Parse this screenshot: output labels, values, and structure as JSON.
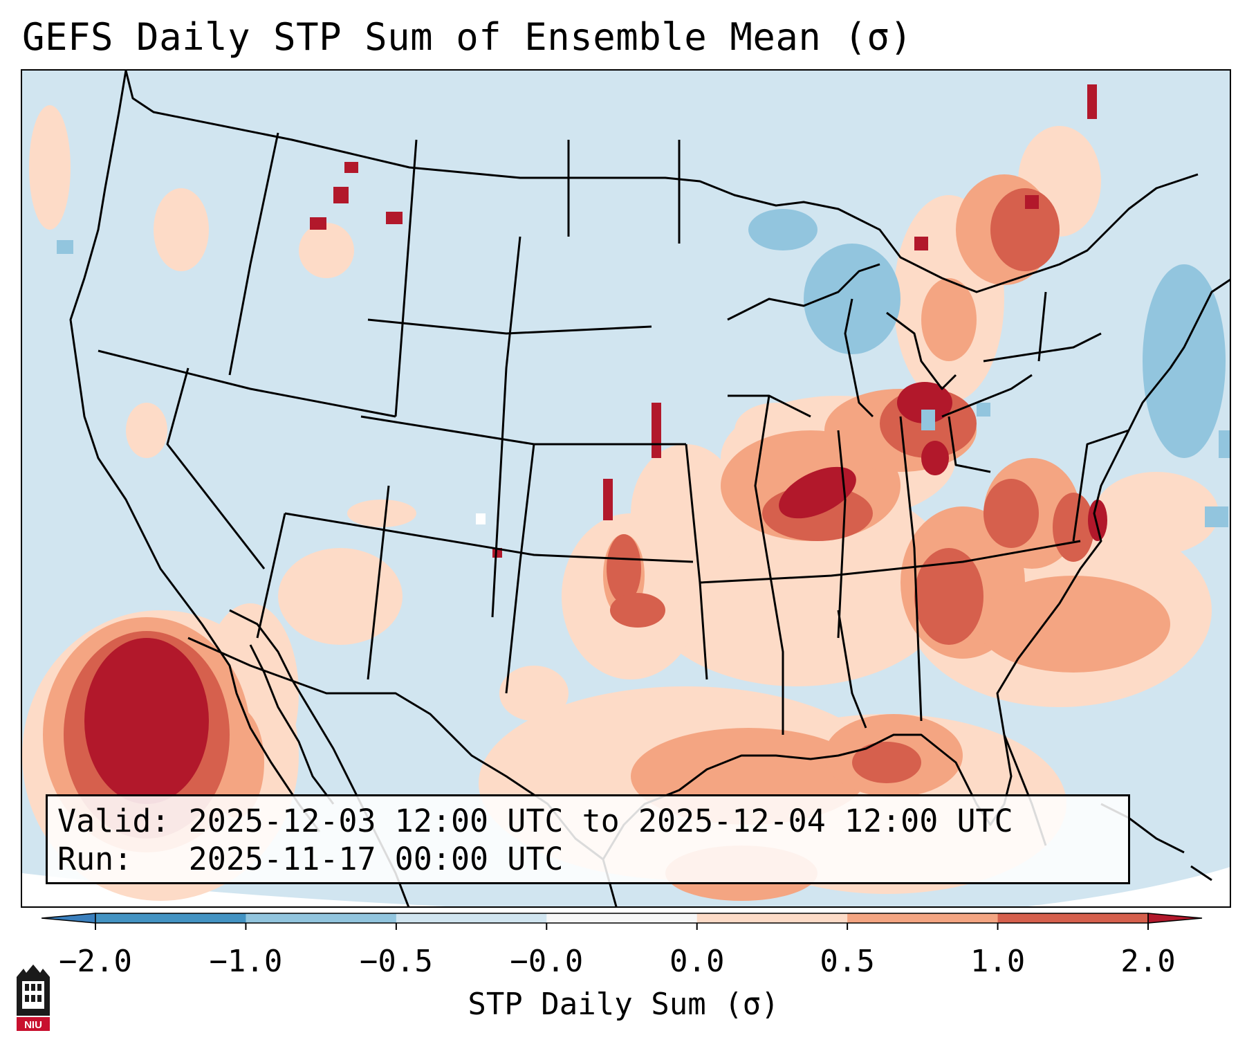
{
  "title": "GEFS Daily STP Sum of Ensemble Mean (σ)",
  "info": {
    "valid_label": "Valid:",
    "valid_value": "2025-12-03 12:00 UTC to 2025-12-04 12:00 UTC",
    "run_label": "Run:",
    "run_value": "2025-11-17 00:00 UTC"
  },
  "colorbar": {
    "label": "STP Daily Sum (σ)",
    "ticks": [
      "−2.0",
      "−1.0",
      "−0.5",
      "−0.0",
      "0.0",
      "0.5",
      "1.0",
      "2.0"
    ],
    "bins": [
      {
        "name": "extend-low",
        "color": "#3a7fbd"
      },
      {
        "name": "-2 to -1",
        "color": "#4393c3"
      },
      {
        "name": "-1 to -0.5",
        "color": "#92c5de"
      },
      {
        "name": "-0.5 to -0.0",
        "color": "#d1e5f0"
      },
      {
        "name": "-0.0 to 0.0",
        "color": "#f7f7f7"
      },
      {
        "name": "0.0 to 0.5",
        "color": "#fddbc7"
      },
      {
        "name": "0.5 to 1.0",
        "color": "#f4a582"
      },
      {
        "name": "1.0 to 2.0",
        "color": "#d6604d"
      },
      {
        "name": "extend-high",
        "color": "#b2182b"
      }
    ]
  },
  "map_data": {
    "domain": "CONUS",
    "field": "GEFS ensemble mean STP daily sum (standardized anomaly)",
    "highlights": [
      {
        "region": "Mid-South / Ohio Valley",
        "level": "1.0 to >2.0"
      },
      {
        "region": "Indiana / Ohio",
        "level": "1.0 to >2.0"
      },
      {
        "region": "Carolinas / Virginia",
        "level": "0.5 to 2.0"
      },
      {
        "region": "Pacific west of Baja",
        "level": ">2.0"
      },
      {
        "region": "Gulf of Mexico",
        "level": "0.0 to 1.0"
      },
      {
        "region": "Great Lakes",
        "level": "-1.0 to -0.5"
      }
    ]
  },
  "logo": {
    "text": "NIU"
  }
}
